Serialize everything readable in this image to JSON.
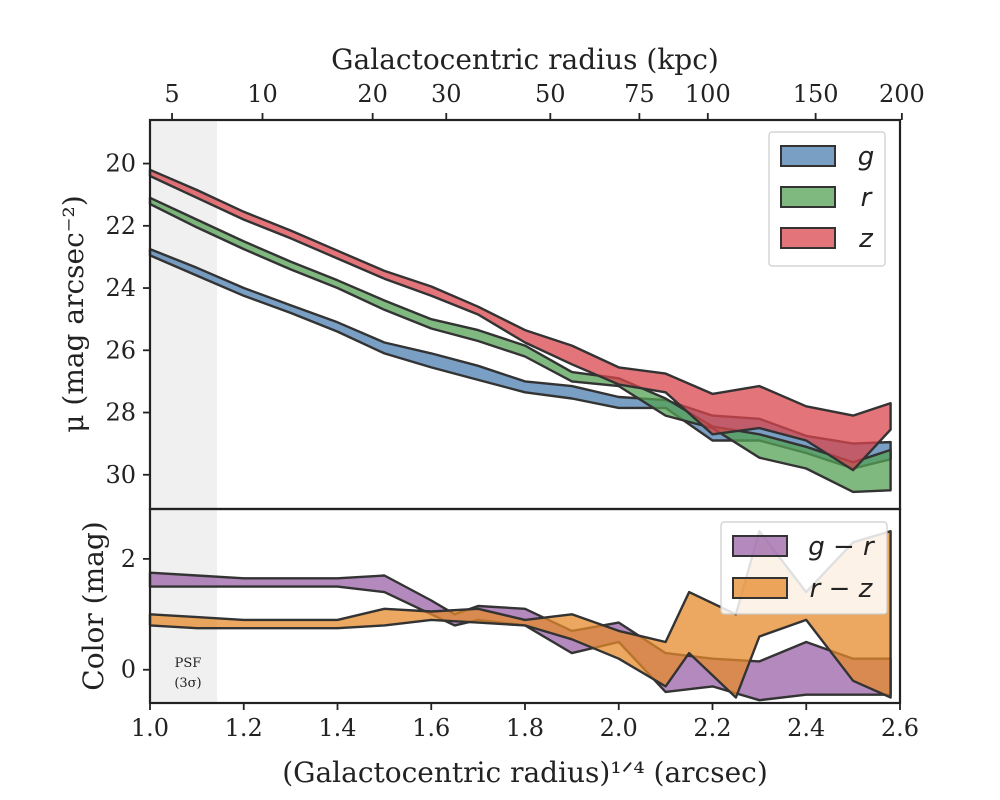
{
  "chart_data": [
    {
      "type": "area",
      "xlabel_top": "Galactocentric radius (kpc)",
      "top_ticks_kpc": [
        "5",
        "10",
        "20",
        "30",
        "50",
        "75",
        "100",
        "150",
        "200"
      ],
      "top_tick_x": [
        1.047,
        1.24,
        1.475,
        1.632,
        1.854,
        2.044,
        2.19,
        2.42,
        2.604
      ],
      "ylabel": "μ (mag arcsec⁻²)",
      "ylim": [
        31.1,
        18.6
      ],
      "yticks": [
        20,
        22,
        24,
        26,
        28,
        30
      ],
      "xlim": [
        1.0,
        2.6
      ],
      "psf_band_x": [
        1.0,
        1.143
      ],
      "legend": {
        "position": "upper right",
        "entries": [
          "g",
          "r",
          "z"
        ]
      },
      "series": [
        {
          "name": "g",
          "color": "#4e7fb0",
          "x": [
            1.0,
            1.1,
            1.2,
            1.3,
            1.4,
            1.5,
            1.6,
            1.7,
            1.8,
            1.9,
            2.0,
            2.1,
            2.2,
            2.3,
            2.4,
            2.5,
            2.58
          ],
          "lower": [
            22.75,
            23.35,
            24.0,
            24.55,
            25.1,
            25.75,
            26.1,
            26.5,
            27.0,
            27.15,
            27.5,
            27.6,
            28.1,
            28.2,
            28.75,
            29.0,
            28.95
          ],
          "upper": [
            22.95,
            23.6,
            24.25,
            24.8,
            25.4,
            26.1,
            26.55,
            26.95,
            27.35,
            27.55,
            27.85,
            27.85,
            28.9,
            28.9,
            29.3,
            29.8,
            29.5
          ]
        },
        {
          "name": "r",
          "color": "#55a255",
          "x": [
            1.0,
            1.1,
            1.2,
            1.3,
            1.4,
            1.5,
            1.6,
            1.7,
            1.8,
            1.9,
            2.0,
            2.1,
            2.2,
            2.3,
            2.4,
            2.5,
            2.58
          ],
          "lower": [
            21.1,
            21.8,
            22.5,
            23.15,
            23.75,
            24.4,
            25.0,
            25.35,
            25.85,
            26.7,
            26.9,
            27.55,
            28.45,
            28.7,
            29.1,
            29.6,
            29.2
          ],
          "upper": [
            21.3,
            22.05,
            22.75,
            23.4,
            24.0,
            24.7,
            25.3,
            25.7,
            26.2,
            27.0,
            27.15,
            28.1,
            28.5,
            29.45,
            29.8,
            30.55,
            30.5
          ]
        },
        {
          "name": "z",
          "color": "#d9464e",
          "x": [
            1.0,
            1.1,
            1.2,
            1.3,
            1.4,
            1.5,
            1.6,
            1.7,
            1.8,
            1.9,
            2.0,
            2.1,
            2.2,
            2.3,
            2.4,
            2.5,
            2.58
          ],
          "lower": [
            20.2,
            20.85,
            21.55,
            22.15,
            22.8,
            23.45,
            23.95,
            24.6,
            25.35,
            25.85,
            26.55,
            26.75,
            27.4,
            27.15,
            27.8,
            28.1,
            27.7
          ],
          "upper": [
            20.4,
            21.1,
            21.8,
            22.4,
            23.05,
            23.7,
            24.25,
            24.85,
            25.75,
            26.45,
            27.1,
            27.35,
            28.7,
            28.5,
            28.9,
            29.85,
            28.55
          ]
        }
      ]
    },
    {
      "type": "area",
      "xlabel": "(Galactocentric radius)¹ᐟ⁴ (arcsec)",
      "ylabel": "Color (mag)",
      "xlim": [
        1.0,
        2.6
      ],
      "xticks": [
        1.0,
        1.2,
        1.4,
        1.6,
        1.8,
        2.0,
        2.2,
        2.4,
        2.6
      ],
      "xtick_labels": [
        "1.0",
        "1.2",
        "1.4",
        "1.6",
        "1.8",
        "2.0",
        "2.2",
        "2.4",
        "2.6"
      ],
      "ylim": [
        -0.6,
        2.9
      ],
      "yticks": [
        0,
        2
      ],
      "psf_label": [
        "PSF",
        "(3σ)"
      ],
      "legend": {
        "position": "upper right",
        "entries": [
          "g − r",
          "r − z"
        ]
      },
      "series": [
        {
          "name": "g − r",
          "color": "#9b63a8",
          "x": [
            1.0,
            1.1,
            1.2,
            1.3,
            1.4,
            1.5,
            1.6,
            1.65,
            1.7,
            1.8,
            1.9,
            2.0,
            2.1,
            2.2,
            2.3,
            2.4,
            2.5,
            2.58
          ],
          "lower": [
            1.5,
            1.5,
            1.5,
            1.5,
            1.5,
            1.4,
            1.0,
            0.8,
            0.9,
            0.8,
            0.3,
            0.5,
            -0.4,
            -0.3,
            -0.55,
            -0.45,
            -0.45,
            -0.45
          ],
          "upper": [
            1.75,
            1.7,
            1.65,
            1.65,
            1.65,
            1.7,
            1.25,
            1.0,
            1.15,
            1.1,
            0.7,
            0.85,
            0.3,
            0.2,
            0.15,
            0.5,
            0.2,
            0.2
          ]
        },
        {
          "name": "r − z",
          "color": "#e6892b",
          "x": [
            1.0,
            1.1,
            1.2,
            1.3,
            1.4,
            1.5,
            1.6,
            1.7,
            1.8,
            1.9,
            2.0,
            2.1,
            2.15,
            2.25,
            2.3,
            2.4,
            2.5,
            2.58
          ],
          "lower": [
            0.8,
            0.75,
            0.75,
            0.75,
            0.75,
            0.8,
            0.9,
            0.85,
            0.8,
            0.55,
            0.2,
            -0.3,
            0.3,
            -0.5,
            0.6,
            0.9,
            -0.2,
            -0.5
          ],
          "upper": [
            1.0,
            0.95,
            0.9,
            0.9,
            0.9,
            1.1,
            1.05,
            1.1,
            0.9,
            1.0,
            0.7,
            0.5,
            1.4,
            1.0,
            2.5,
            1.4,
            2.3,
            2.5
          ]
        }
      ]
    }
  ]
}
